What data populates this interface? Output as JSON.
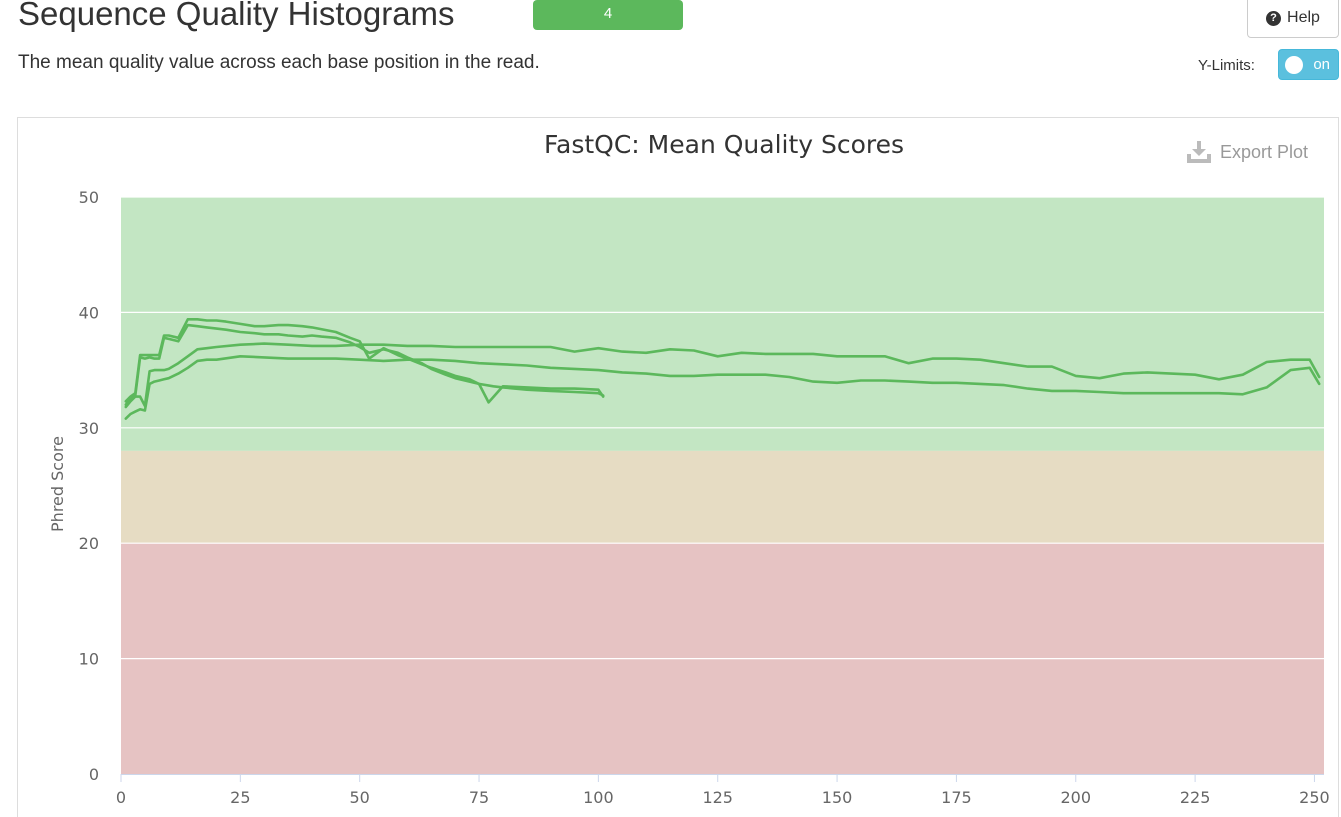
{
  "header": {
    "title": "Sequence Quality Histograms",
    "badge_count": "4",
    "help_label": "Help",
    "description": "The mean quality value across each base position in the read."
  },
  "controls": {
    "ylimits_label": "Y-Limits:",
    "toggle_label": "on"
  },
  "plot": {
    "export_label": "Export Plot"
  },
  "colors": {
    "line": "#5cb85c",
    "band_good": "#c3e6c3",
    "band_warn": "#e6dcc3",
    "band_fail": "#e6c3c3",
    "badge": "#5cb85c",
    "toggle": "#5bc0de"
  },
  "chart_data": {
    "type": "line",
    "title": "FastQC: Mean Quality Scores",
    "xlabel": "",
    "ylabel": "Phred Score",
    "xlim": [
      0,
      252
    ],
    "ylim": [
      0,
      50
    ],
    "xticks": [
      0,
      25,
      50,
      75,
      100,
      125,
      150,
      175,
      200,
      225,
      250
    ],
    "yticks": [
      0,
      10,
      20,
      30,
      40,
      50
    ],
    "grid": true,
    "legend": "none",
    "bands": [
      {
        "from": 28,
        "to": 50,
        "status": "pass"
      },
      {
        "from": 20,
        "to": 28,
        "status": "warn"
      },
      {
        "from": 0,
        "to": 20,
        "status": "fail"
      }
    ],
    "series": [
      {
        "x": [
          1,
          2,
          3,
          4,
          5,
          6,
          7,
          8,
          9,
          10,
          12,
          14,
          16,
          18,
          20,
          25,
          30,
          35,
          40,
          45,
          50,
          55,
          60,
          65,
          70,
          75,
          80,
          85,
          90,
          95,
          100,
          105,
          110,
          115,
          120,
          125,
          130,
          135,
          140,
          145,
          150,
          155,
          160,
          165,
          170,
          175,
          180,
          185,
          190,
          195,
          200,
          205,
          210,
          215,
          220,
          225,
          230,
          235,
          240,
          245,
          249,
          251
        ],
        "y": [
          31.8,
          32.3,
          32.7,
          32.7,
          31.9,
          34.9,
          35.0,
          35.0,
          35.0,
          35.1,
          35.6,
          36.2,
          36.8,
          36.9,
          37.0,
          37.2,
          37.3,
          37.2,
          37.1,
          37.1,
          37.2,
          37.2,
          37.1,
          37.1,
          37.0,
          37.0,
          37.0,
          37.0,
          37.0,
          36.6,
          36.9,
          36.6,
          36.5,
          36.8,
          36.7,
          36.2,
          36.5,
          36.4,
          36.4,
          36.4,
          36.2,
          36.2,
          36.2,
          35.6,
          36.0,
          36.0,
          35.9,
          35.6,
          35.3,
          35.3,
          34.5,
          34.3,
          34.7,
          34.8,
          34.7,
          34.6,
          34.2,
          34.6,
          35.7,
          35.9,
          35.9,
          34.4
        ]
      },
      {
        "x": [
          1,
          2,
          3,
          4,
          5,
          6,
          7,
          8,
          9,
          10,
          12,
          14,
          16,
          18,
          20,
          25,
          30,
          35,
          40,
          45,
          50,
          55,
          60,
          65,
          70,
          75,
          80,
          85,
          90,
          95,
          100,
          105,
          110,
          115,
          120,
          125,
          130,
          135,
          140,
          145,
          150,
          155,
          160,
          165,
          170,
          175,
          180,
          185,
          190,
          195,
          200,
          205,
          210,
          215,
          220,
          225,
          230,
          235,
          240,
          245,
          249,
          251
        ],
        "y": [
          30.8,
          31.2,
          31.4,
          31.6,
          31.5,
          33.8,
          34.0,
          34.1,
          34.2,
          34.3,
          34.7,
          35.2,
          35.8,
          35.9,
          35.9,
          36.2,
          36.1,
          36.0,
          36.0,
          36.0,
          35.9,
          35.8,
          35.9,
          35.9,
          35.8,
          35.6,
          35.5,
          35.4,
          35.2,
          35.1,
          35.0,
          34.8,
          34.7,
          34.5,
          34.5,
          34.6,
          34.6,
          34.6,
          34.4,
          34.0,
          33.9,
          34.1,
          34.1,
          34.0,
          33.9,
          33.9,
          33.8,
          33.7,
          33.4,
          33.2,
          33.2,
          33.1,
          33.0,
          33.0,
          33.0,
          33.0,
          33.0,
          32.9,
          33.5,
          35.0,
          35.2,
          33.8
        ]
      },
      {
        "x": [
          1,
          2,
          3,
          4,
          5,
          6,
          7,
          8,
          9,
          10,
          12,
          14,
          16,
          18,
          20,
          22,
          25,
          28,
          30,
          33,
          35,
          38,
          40,
          45,
          48,
          50,
          52,
          55,
          58,
          60,
          63,
          65,
          68,
          70,
          73,
          75,
          77,
          80,
          85,
          90,
          95,
          100,
          101
        ],
        "y": [
          32.3,
          32.7,
          33.0,
          36.3,
          36.3,
          36.3,
          36.3,
          36.3,
          38.0,
          38.0,
          37.8,
          39.4,
          39.4,
          39.3,
          39.3,
          39.2,
          39.0,
          38.8,
          38.8,
          38.9,
          38.9,
          38.8,
          38.7,
          38.3,
          37.8,
          37.5,
          36.0,
          36.9,
          36.3,
          36.0,
          35.5,
          35.2,
          34.8,
          34.5,
          34.2,
          33.8,
          32.2,
          33.6,
          33.5,
          33.4,
          33.4,
          33.3,
          32.7
        ]
      },
      {
        "x": [
          1,
          2,
          3,
          4,
          5,
          6,
          7,
          8,
          9,
          10,
          12,
          14,
          16,
          18,
          20,
          22,
          25,
          28,
          30,
          33,
          35,
          38,
          40,
          42,
          45,
          48,
          50,
          52,
          55,
          58,
          60,
          63,
          65,
          68,
          70,
          73,
          75,
          78,
          80,
          85,
          90,
          95,
          100,
          101
        ],
        "y": [
          32.0,
          32.5,
          32.8,
          36.1,
          36.0,
          36.1,
          36.0,
          36.0,
          37.8,
          37.7,
          37.5,
          38.9,
          38.8,
          38.7,
          38.6,
          38.5,
          38.3,
          38.2,
          38.1,
          38.1,
          38.0,
          37.9,
          38.0,
          37.9,
          37.8,
          37.4,
          37.0,
          36.5,
          36.8,
          36.5,
          36.1,
          35.6,
          35.1,
          34.6,
          34.3,
          34.0,
          33.8,
          33.6,
          33.5,
          33.3,
          33.2,
          33.1,
          33.0,
          32.8
        ]
      }
    ]
  }
}
